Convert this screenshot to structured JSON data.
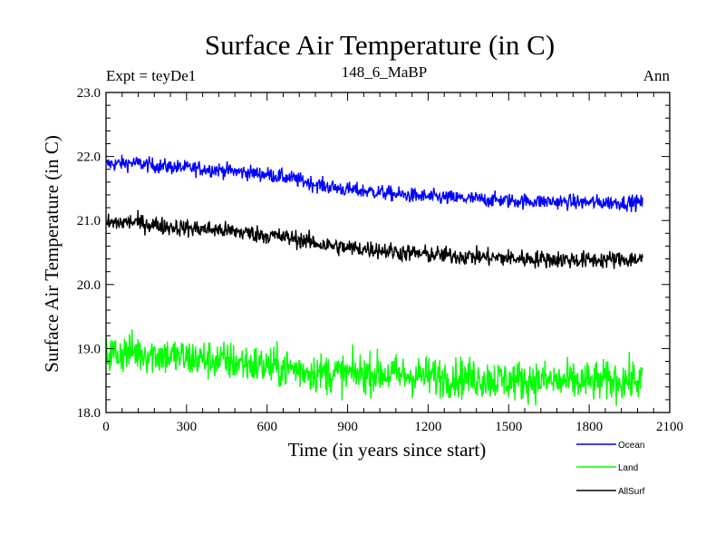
{
  "chart_data": {
    "type": "line",
    "title": "Surface Air Temperature (in C)",
    "subtitle_left": "Expt = teyDe1",
    "subtitle_center": "148_6_MaBP",
    "subtitle_right": "Ann",
    "xlabel": "Time (in years since start)",
    "ylabel": "Surface Air Temperature (in C)",
    "xlim": [
      0,
      2100
    ],
    "ylim": [
      18.0,
      23.0
    ],
    "xticks": [
      0,
      300,
      600,
      900,
      1200,
      1500,
      1800,
      2100
    ],
    "xtick_labels": [
      "0",
      "300",
      "600",
      "900",
      "1200",
      "1500",
      "1800",
      "2100"
    ],
    "yticks": [
      18.0,
      19.0,
      20.0,
      21.0,
      22.0,
      23.0
    ],
    "ytick_labels": [
      "18.0",
      "19.0",
      "20.0",
      "21.0",
      "22.0",
      "23.0"
    ],
    "x_range": [
      1,
      2000
    ],
    "series": [
      {
        "name": "Ocean",
        "color": "#0000ff",
        "noise": 0.06,
        "x": [
          0,
          100,
          200,
          300,
          400,
          500,
          600,
          700,
          800,
          900,
          1000,
          1100,
          1200,
          1300,
          1400,
          1500,
          1600,
          1700,
          1800,
          1900,
          2000
        ],
        "y": [
          21.88,
          21.9,
          21.85,
          21.82,
          21.8,
          21.76,
          21.72,
          21.65,
          21.55,
          21.48,
          21.45,
          21.4,
          21.37,
          21.35,
          21.33,
          21.31,
          21.3,
          21.29,
          21.28,
          21.28,
          21.28
        ]
      },
      {
        "name": "Land",
        "color": "#00ff00",
        "noise": 0.16,
        "x": [
          0,
          100,
          200,
          300,
          400,
          500,
          600,
          700,
          800,
          900,
          1000,
          1100,
          1200,
          1300,
          1400,
          1500,
          1600,
          1700,
          1800,
          1900,
          2000
        ],
        "y": [
          18.9,
          18.95,
          18.9,
          18.85,
          18.82,
          18.78,
          18.72,
          18.68,
          18.62,
          18.6,
          18.62,
          18.58,
          18.57,
          18.55,
          18.53,
          18.5,
          18.5,
          18.48,
          18.48,
          18.5,
          18.5
        ]
      },
      {
        "name": "AllSurf",
        "color": "#000000",
        "noise": 0.07,
        "x": [
          0,
          100,
          200,
          300,
          400,
          500,
          600,
          700,
          800,
          900,
          1000,
          1100,
          1200,
          1300,
          1400,
          1500,
          1600,
          1700,
          1800,
          1900,
          2000
        ],
        "y": [
          20.95,
          20.98,
          20.92,
          20.88,
          20.86,
          20.82,
          20.77,
          20.72,
          20.63,
          20.57,
          20.55,
          20.5,
          20.47,
          20.45,
          20.43,
          20.41,
          20.4,
          20.39,
          20.38,
          20.39,
          20.4
        ]
      }
    ],
    "legend": [
      "Ocean",
      "Land",
      "AllSurf"
    ],
    "legend_position": "bottom-right"
  }
}
